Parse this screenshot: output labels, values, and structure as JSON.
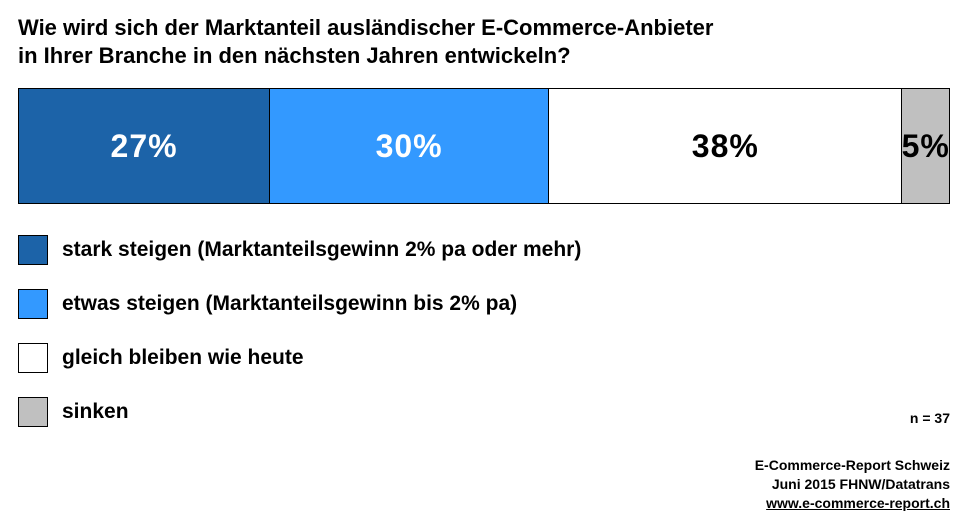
{
  "title_lines": [
    "Wie wird sich der Marktanteil ausländischer E-Commerce-Anbieter",
    "in Ihrer Branche in den nächsten Jahren entwickeln?"
  ],
  "chart_data": {
    "type": "bar",
    "orientation": "horizontal-stacked-100",
    "title": "Wie wird sich der Marktanteil ausländischer E-Commerce-Anbieter in Ihrer Branche in den nächsten Jahren entwickeln?",
    "series": [
      {
        "name": "stark steigen (Marktanteilsgewinn 2% pa oder mehr)",
        "value": 27,
        "label": "27%",
        "color": "#1c63a8",
        "text_color": "#ffffff"
      },
      {
        "name": "etwas steigen (Marktanteilsgewinn bis 2% pa)",
        "value": 30,
        "label": "30%",
        "color": "#3399ff",
        "text_color": "#ffffff"
      },
      {
        "name": "gleich bleiben wie heute",
        "value": 38,
        "label": "38%",
        "color": "#ffffff",
        "text_color": "#000000"
      },
      {
        "name": "sinken",
        "value": 5,
        "label": "5%",
        "color": "#c0c0c0",
        "text_color": "#000000"
      }
    ],
    "legend_position": "below"
  },
  "sample_size": "n = 37",
  "source_lines": [
    "E-Commerce-Report Schweiz",
    "Juni 2015 FHNW/Datatrans",
    "www.e-commerce-report.ch"
  ]
}
